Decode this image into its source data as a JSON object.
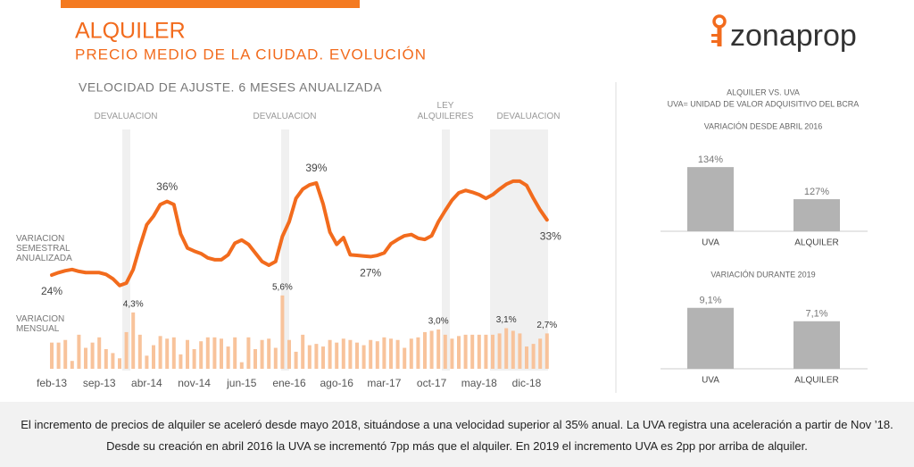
{
  "header": {
    "title": "ALQUILER",
    "subtitle": "PRECIO MEDIO DE LA CIUDAD. EVOLUCIÓN",
    "logo": "zonaprop"
  },
  "panel": {
    "title": "ALQUILER VS. UVA",
    "subtitle": "UVA= UNIDAD DE VALOR ADQUISITIVO DEL BCRA"
  },
  "chart_data": [
    {
      "type": "combo",
      "title": "VELOCIDAD DE AJUSTE. 6 MESES ANUALIZADA",
      "categories": [
        "feb-13",
        null,
        null,
        null,
        null,
        null,
        null,
        "sep-13",
        null,
        null,
        null,
        null,
        null,
        null,
        "abr-14",
        null,
        null,
        null,
        null,
        null,
        null,
        "nov-14",
        null,
        null,
        null,
        null,
        null,
        null,
        "jun-15",
        null,
        null,
        null,
        null,
        null,
        null,
        "ene-16",
        null,
        null,
        null,
        null,
        null,
        null,
        "ago-16",
        null,
        null,
        null,
        null,
        null,
        null,
        "mar-17",
        null,
        null,
        null,
        null,
        null,
        null,
        "oct-17",
        null,
        null,
        null,
        null,
        null,
        null,
        "may-18",
        null,
        null,
        null,
        null,
        null,
        null,
        "dic-18",
        null,
        null,
        null
      ],
      "series": [
        {
          "name": "VARIACION SEMESTRAL ANUALIZADA",
          "type": "line",
          "color": "#f26b1d",
          "values": [
            24.0,
            24.4,
            24.7,
            24.9,
            24.6,
            24.4,
            24.4,
            24.4,
            24.1,
            23.4,
            22.3,
            22.7,
            24.9,
            28.7,
            32.2,
            33.6,
            35.5,
            36.0,
            35.5,
            30.7,
            28.4,
            27.9,
            27.5,
            26.8,
            26.5,
            26.5,
            27.3,
            29.2,
            29.7,
            29.0,
            27.6,
            26.2,
            25.6,
            26.2,
            30.3,
            32.7,
            36.5,
            38.0,
            38.7,
            39.0,
            35.6,
            31.0,
            29.0,
            30.1,
            27.3,
            27.2,
            27.1,
            27.0,
            27.2,
            27.6,
            29.1,
            29.8,
            30.4,
            30.6,
            30.0,
            29.8,
            30.4,
            32.7,
            34.5,
            36.2,
            37.4,
            37.8,
            37.5,
            37.1,
            36.5,
            37.1,
            38.0,
            38.8,
            39.3,
            39.3,
            38.6,
            36.5,
            34.6,
            33.0
          ],
          "value_labels": [
            "24%",
            null,
            null,
            null,
            null,
            null,
            null,
            null,
            null,
            null,
            null,
            null,
            null,
            null,
            null,
            null,
            null,
            "36%",
            null,
            null,
            null,
            null,
            null,
            null,
            null,
            null,
            null,
            null,
            null,
            null,
            null,
            null,
            null,
            null,
            null,
            null,
            null,
            null,
            null,
            "39%",
            null,
            null,
            null,
            null,
            null,
            null,
            null,
            "27%",
            null,
            null,
            null,
            null,
            null,
            null,
            null,
            null,
            null,
            null,
            null,
            null,
            null,
            null,
            null,
            null,
            null,
            null,
            null,
            null,
            null,
            null,
            null,
            null,
            null,
            "33%"
          ]
        },
        {
          "name": "VARIACION MENSUAL",
          "type": "bar",
          "color": "#f8c39b",
          "axis": "y2",
          "values": [
            2.0,
            2.0,
            2.2,
            0.6,
            2.6,
            1.6,
            2.0,
            2.4,
            1.5,
            1.2,
            0.8,
            2.8,
            4.3,
            2.6,
            1.0,
            1.8,
            2.5,
            2.3,
            2.4,
            1.1,
            2.2,
            1.5,
            2.1,
            2.4,
            2.4,
            2.3,
            1.7,
            2.4,
            0.5,
            2.4,
            1.5,
            2.2,
            2.3,
            1.6,
            5.6,
            2.2,
            1.3,
            2.6,
            1.8,
            1.9,
            1.7,
            2.2,
            2.0,
            2.3,
            2.2,
            2.0,
            1.8,
            2.2,
            2.1,
            2.4,
            2.3,
            2.2,
            1.6,
            2.3,
            2.4,
            2.8,
            2.9,
            3.0,
            2.6,
            2.3,
            2.5,
            2.6,
            2.6,
            2.6,
            2.6,
            2.6,
            2.7,
            3.1,
            2.9,
            2.7,
            1.7,
            1.9,
            2.3,
            2.7
          ],
          "value_labels": [
            null,
            null,
            null,
            null,
            null,
            null,
            null,
            null,
            null,
            null,
            null,
            null,
            "4,3%",
            null,
            null,
            null,
            null,
            null,
            null,
            null,
            null,
            null,
            null,
            null,
            null,
            null,
            null,
            null,
            null,
            null,
            null,
            null,
            null,
            null,
            "5,6%",
            null,
            null,
            null,
            null,
            null,
            null,
            null,
            null,
            null,
            null,
            null,
            null,
            null,
            null,
            null,
            null,
            null,
            null,
            null,
            null,
            null,
            null,
            "3,0%",
            null,
            null,
            null,
            null,
            null,
            null,
            null,
            null,
            null,
            "3,1%",
            null,
            null,
            null,
            null,
            null,
            "2,7%"
          ]
        }
      ],
      "ylim": [
        20,
        45
      ],
      "y2lim": [
        0,
        6
      ],
      "annotations": [
        "DEVALUACION",
        "DEVALUACION",
        "LEY ALQUILERES",
        "DEVALUACION"
      ]
    },
    {
      "type": "bar",
      "title": "VARIACIÓN DESDE ABRIL 2016",
      "categories": [
        "UVA",
        "ALQUILER"
      ],
      "values": [
        134,
        127
      ],
      "value_labels": [
        "134%",
        "127%"
      ],
      "color": "#b3b3b3",
      "ylim": [
        120,
        135
      ]
    },
    {
      "type": "bar",
      "title": "VARIACIÓN DURANTE 2019",
      "categories": [
        "UVA",
        "ALQUILER"
      ],
      "values": [
        9.1,
        7.1
      ],
      "value_labels": [
        "9,1%",
        "7,1%"
      ],
      "color": "#b3b3b3",
      "ylim": [
        0,
        10
      ]
    }
  ],
  "footer": [
    "El incremento de precios de alquiler se aceleró desde mayo 2018, situándose a una velocidad superior al 35% anual. La UVA registra una aceleración a partir de Nov ’18.",
    "Desde su creación en abril 2016 la UVA se incrementó 7pp más que el alquiler. En 2019 el incremento UVA es 2pp por arriba de alquiler."
  ]
}
